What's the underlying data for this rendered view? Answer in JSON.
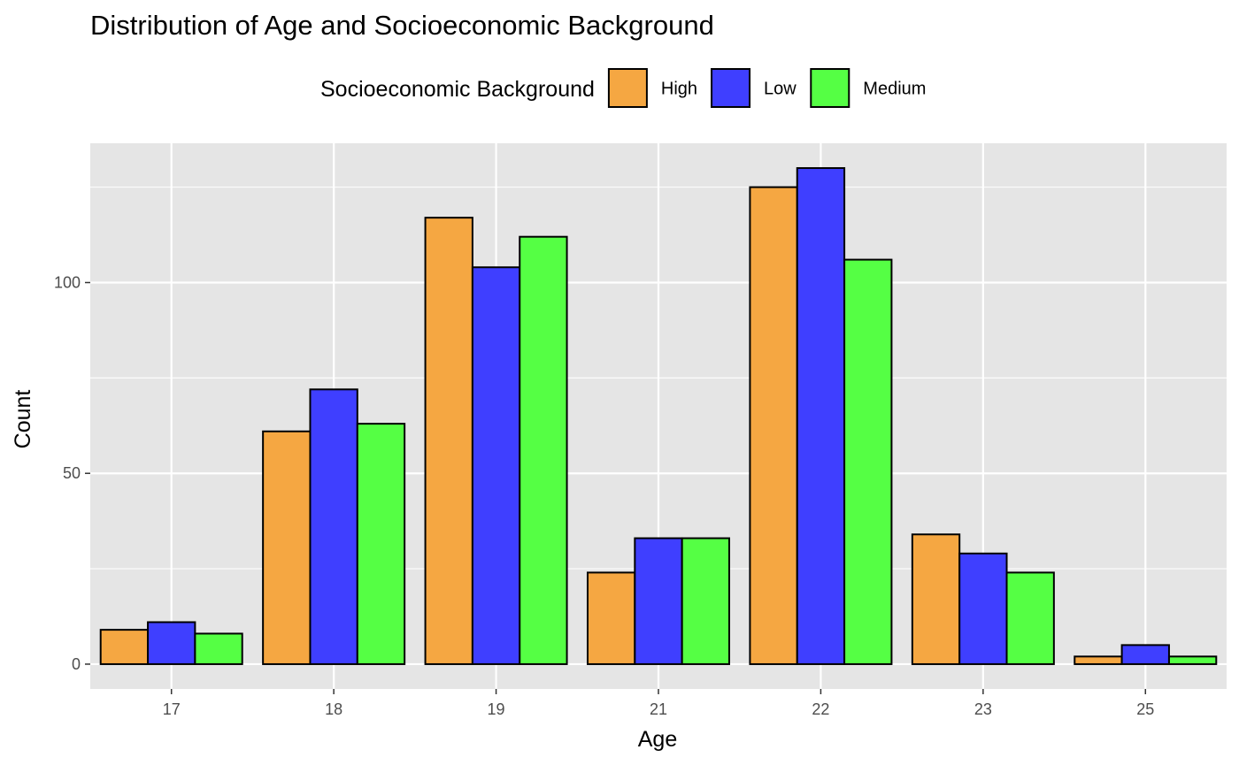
{
  "chart_data": {
    "type": "bar",
    "title": "Distribution of Age and Socioeconomic Background",
    "xlabel": "Age",
    "ylabel": "Count",
    "categories": [
      "17",
      "18",
      "19",
      "21",
      "22",
      "23",
      "25"
    ],
    "series": [
      {
        "name": "High",
        "color": "#F5A742",
        "values": [
          9,
          61,
          117,
          24,
          125,
          34,
          2
        ]
      },
      {
        "name": "Low",
        "color": "#3F3FFF",
        "values": [
          11,
          72,
          104,
          33,
          130,
          29,
          5
        ]
      },
      {
        "name": "Medium",
        "color": "#55FF44",
        "values": [
          8,
          63,
          112,
          33,
          106,
          24,
          2
        ]
      }
    ],
    "ylim": [
      -6.5,
      136.5
    ],
    "yticks": [
      0,
      50,
      100
    ],
    "legend_title": "Socioeconomic Background",
    "legend_position": "top",
    "grid": true,
    "panel_background": "#E5E5E5",
    "bar_outline": "#000000"
  }
}
